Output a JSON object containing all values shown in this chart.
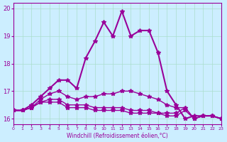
{
  "xlabel": "Windchill (Refroidissement éolien,°C)",
  "ylabel": "",
  "background_color": "#cceeff",
  "grid_color": "#aaddcc",
  "line_color": "#990099",
  "xlim": [
    0,
    23
  ],
  "ylim": [
    15.8,
    20.2
  ],
  "yticks": [
    16,
    17,
    18,
    19,
    20
  ],
  "xticks": [
    0,
    1,
    2,
    3,
    4,
    5,
    6,
    7,
    8,
    9,
    10,
    11,
    12,
    13,
    14,
    15,
    16,
    17,
    18,
    19,
    20,
    21,
    22,
    23
  ],
  "series": [
    [
      16.3,
      16.3,
      16.5,
      16.8,
      17.1,
      17.4,
      17.4,
      17.1,
      18.2,
      18.8,
      19.5,
      19.0,
      19.9,
      19.0,
      19.2,
      19.2,
      18.4,
      17.0,
      16.5,
      16.0,
      16.1,
      16.1,
      16.1,
      16.0
    ],
    [
      16.3,
      16.3,
      16.4,
      16.7,
      16.9,
      17.0,
      16.8,
      16.7,
      16.8,
      16.8,
      16.9,
      16.9,
      17.0,
      17.0,
      16.9,
      16.8,
      16.7,
      16.5,
      16.4,
      16.4,
      16.0,
      16.1,
      16.1,
      16.0
    ],
    [
      16.3,
      16.3,
      16.4,
      16.6,
      16.7,
      16.7,
      16.5,
      16.5,
      16.5,
      16.4,
      16.4,
      16.4,
      16.4,
      16.3,
      16.3,
      16.3,
      16.2,
      16.2,
      16.2,
      16.4,
      16.0,
      16.1,
      16.1,
      16.0
    ],
    [
      16.3,
      16.3,
      16.4,
      16.6,
      16.6,
      16.6,
      16.4,
      16.4,
      16.4,
      16.3,
      16.3,
      16.3,
      16.3,
      16.2,
      16.2,
      16.2,
      16.2,
      16.1,
      16.1,
      16.3,
      16.0,
      16.1,
      16.1,
      16.0
    ]
  ]
}
